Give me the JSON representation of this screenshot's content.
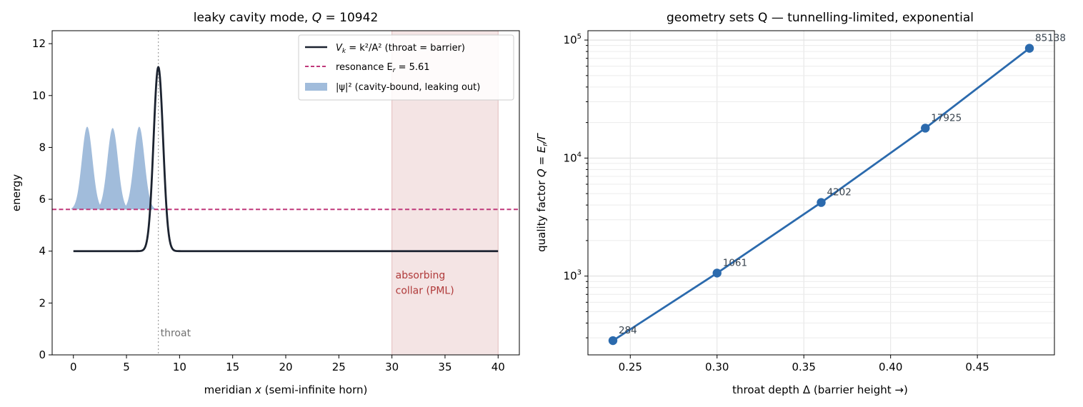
{
  "chart_data": [
    {
      "type": "line",
      "title": "leaky cavity mode, Q = 10942",
      "title_parts": {
        "prefix": "leaky cavity mode, ",
        "var": "Q",
        "suffix": " = 10942"
      },
      "xlabel": "meridian x (semi-infinite horn)",
      "xlabel_parts": {
        "prefix": "meridian ",
        "var": "x",
        "suffix": " (semi-infinite horn)"
      },
      "ylabel": "energy",
      "xlim": [
        -2,
        42
      ],
      "ylim": [
        0,
        12.5
      ],
      "xticks": [
        0,
        5,
        10,
        15,
        20,
        25,
        30,
        35,
        40
      ],
      "yticks": [
        0,
        2,
        4,
        6,
        8,
        10,
        12
      ],
      "grid": false,
      "legend_position": "upper right",
      "series": [
        {
          "name": "V_k = k²/A² (throat = barrier)",
          "kind": "potential",
          "color": "#1c2330",
          "baseline": 4.0,
          "barrier_center": 8.0,
          "barrier_peak": 11.1,
          "barrier_width_sigma": 0.45,
          "x_range": [
            0,
            40
          ]
        },
        {
          "name": "resonance E_r = 5.61",
          "kind": "hline",
          "color": "#c0387a",
          "y": 5.61
        },
        {
          "name": "|ψ|² (cavity-bound, leaking out)",
          "kind": "density",
          "color": "#a1bcdb",
          "baseline": 5.61,
          "peaks": [
            {
              "x": 1.3,
              "y": 8.8
            },
            {
              "x": 3.7,
              "y": 8.75
            },
            {
              "x": 6.2,
              "y": 8.8
            }
          ],
          "sigma": 0.5
        }
      ],
      "legend": [
        {
          "label_prefix": "V",
          "label_sub": "k",
          "label_rest": " = k²/A² (throat = barrier)",
          "style": "line",
          "color": "#1c2330"
        },
        {
          "label_prefix": "resonance E",
          "label_sub": "r",
          "label_rest": " = 5.61",
          "style": "dash",
          "color": "#c0387a"
        },
        {
          "label_prefix": "|ψ|²",
          "label_sub": "",
          "label_rest": " (cavity-bound, leaking out)",
          "style": "patch",
          "color": "#a1bcdb"
        }
      ],
      "annotations": {
        "throat_x": 8.0,
        "throat_label": "throat",
        "pml_range": [
          30,
          40
        ],
        "pml_label_line1": "absorbing",
        "pml_label_line2": "collar (PML)",
        "pml_text_color": "#b03a3a",
        "pml_fill_color": "#f0d9d9"
      }
    },
    {
      "type": "line",
      "title": "geometry sets Q — tunnelling-limited, exponential",
      "xlabel": "throat depth  Δ  (barrier height →)",
      "ylabel": "quality factor  Q = E_r/Γ",
      "ylabel_parts": {
        "prefix": "quality factor  ",
        "var": "Q = E",
        "sub": "r",
        "suffix": "/Γ"
      },
      "xlim": [
        0.2256,
        0.4944
      ],
      "ylim": [
        215,
        120000
      ],
      "yscale": "log",
      "xticks": [
        0.25,
        0.3,
        0.35,
        0.4,
        0.45
      ],
      "xtick_labels": [
        "0.25",
        "0.30",
        "0.35",
        "0.40",
        "0.45"
      ],
      "ytick_major": [
        1000,
        10000,
        100000
      ],
      "ytick_labels": [
        {
          "base": "10",
          "exp": "3"
        },
        {
          "base": "10",
          "exp": "4"
        },
        {
          "base": "10",
          "exp": "5"
        }
      ],
      "grid": true,
      "color": "#2b6aad",
      "x": [
        0.24,
        0.3,
        0.36,
        0.42,
        0.48
      ],
      "y": [
        284,
        1061,
        4202,
        17925,
        85138
      ],
      "point_labels": [
        "284",
        "1061",
        "4202",
        "17925",
        "85138"
      ]
    }
  ]
}
